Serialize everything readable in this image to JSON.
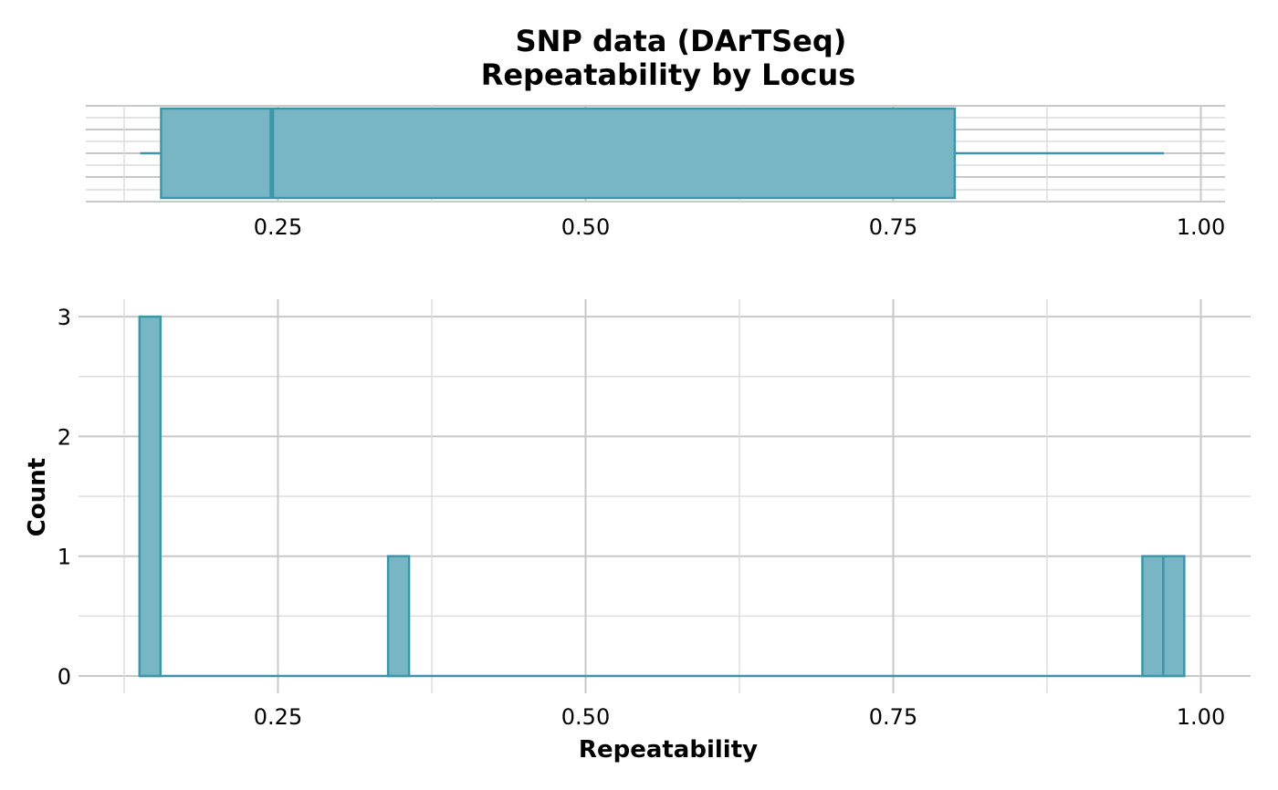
{
  "chart_data": [
    {
      "type": "boxplot",
      "title_line1": "SNP data (DArTSeq)",
      "title_line2": "Repeatability by Locus",
      "xlim": [
        0.12,
        1.04
      ],
      "x_ticks": [
        "0.25",
        "0.50",
        "0.75",
        "1.00"
      ],
      "x_tick_values": [
        0.25,
        0.5,
        0.75,
        1.0
      ],
      "whisker_low": 0.138,
      "q1": 0.155,
      "median": 0.245,
      "q3": 0.8,
      "whisker_high": 0.97,
      "fill_color": "#78b5c5",
      "stroke_color": "#3d96a8"
    },
    {
      "type": "bar",
      "xlabel": "Repeatability",
      "ylabel": "Count",
      "xlim": [
        0.12,
        1.04
      ],
      "ylim": [
        0,
        3
      ],
      "x_ticks": [
        "0.25",
        "0.50",
        "0.75",
        "1.00"
      ],
      "x_tick_values": [
        0.25,
        0.5,
        0.75,
        1.0
      ],
      "y_ticks": [
        "0",
        "1",
        "2",
        "3"
      ],
      "y_tick_values": [
        0,
        1,
        2,
        3
      ],
      "bin_range": [
        0.138,
        0.978
      ],
      "bin_count": 50,
      "bins": [
        {
          "x": 0.146,
          "count": 3
        },
        {
          "x": 0.348,
          "count": 1
        },
        {
          "x": 0.961,
          "count": 1
        },
        {
          "x": 0.978,
          "count": 1
        }
      ],
      "fill_color": "#78b5c5",
      "stroke_color": "#3d96a8"
    }
  ]
}
